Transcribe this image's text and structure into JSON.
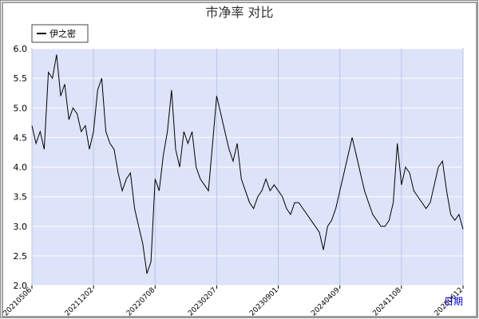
{
  "chart_data": {
    "type": "line",
    "title": "市净率 对比",
    "x_label": "日期",
    "categories": [
      "20210506",
      null,
      null,
      null,
      null,
      null,
      null,
      null,
      null,
      null,
      null,
      null,
      null,
      null,
      null,
      "20211202",
      null,
      null,
      null,
      null,
      null,
      null,
      null,
      null,
      null,
      null,
      null,
      null,
      null,
      null,
      "20220708",
      null,
      null,
      null,
      null,
      null,
      null,
      null,
      null,
      null,
      null,
      null,
      null,
      null,
      null,
      "20230207",
      null,
      null,
      null,
      null,
      null,
      null,
      null,
      null,
      null,
      null,
      null,
      null,
      null,
      null,
      "20230901",
      null,
      null,
      null,
      null,
      null,
      null,
      null,
      null,
      null,
      null,
      null,
      null,
      null,
      null,
      "20240409",
      null,
      null,
      null,
      null,
      null,
      null,
      null,
      null,
      null,
      null,
      null,
      null,
      null,
      null,
      "20241108",
      null,
      null,
      null,
      null,
      null,
      null,
      null,
      null,
      null,
      null,
      null,
      null,
      null,
      null,
      "20250612"
    ],
    "series": [
      {
        "name": "伊之密",
        "color": "#000000",
        "values": [
          4.7,
          4.4,
          4.6,
          4.3,
          5.6,
          5.5,
          5.9,
          5.2,
          5.4,
          4.8,
          5.0,
          4.9,
          4.6,
          4.7,
          4.3,
          4.6,
          5.3,
          5.5,
          4.6,
          4.4,
          4.3,
          3.9,
          3.6,
          3.8,
          3.9,
          3.3,
          3.0,
          2.7,
          2.2,
          2.4,
          3.8,
          3.6,
          4.2,
          4.6,
          5.3,
          4.3,
          4.0,
          4.6,
          4.4,
          4.6,
          4.0,
          3.8,
          3.7,
          3.6,
          4.4,
          5.2,
          4.9,
          4.6,
          4.3,
          4.1,
          4.4,
          3.8,
          3.6,
          3.4,
          3.3,
          3.5,
          3.6,
          3.8,
          3.6,
          3.7,
          3.6,
          3.5,
          3.3,
          3.2,
          3.4,
          3.4,
          3.3,
          3.2,
          3.1,
          3.0,
          2.9,
          2.6,
          3.0,
          3.1,
          3.3,
          3.6,
          3.9,
          4.2,
          4.5,
          4.2,
          3.9,
          3.6,
          3.4,
          3.2,
          3.1,
          3.0,
          3.0,
          3.1,
          3.4,
          4.4,
          3.7,
          4.0,
          3.9,
          3.6,
          3.5,
          3.4,
          3.3,
          3.4,
          3.7,
          4.0,
          4.1,
          3.6,
          3.2,
          3.1,
          3.2,
          2.95
        ]
      }
    ],
    "ylim": [
      2,
      6
    ],
    "yticks": [
      {
        "value": 2,
        "label": "2.0"
      },
      {
        "value": 2.5,
        "label": "2.5"
      },
      {
        "value": 3,
        "label": "3.0"
      },
      {
        "value": 3.5,
        "label": "3.5"
      },
      {
        "value": 4,
        "label": "4.0"
      },
      {
        "value": 4.5,
        "label": "4.5"
      },
      {
        "value": 5,
        "label": "5.0"
      },
      {
        "value": 5.5,
        "label": "5.5"
      },
      {
        "value": 6,
        "label": "6.0"
      }
    ],
    "grid": true
  }
}
